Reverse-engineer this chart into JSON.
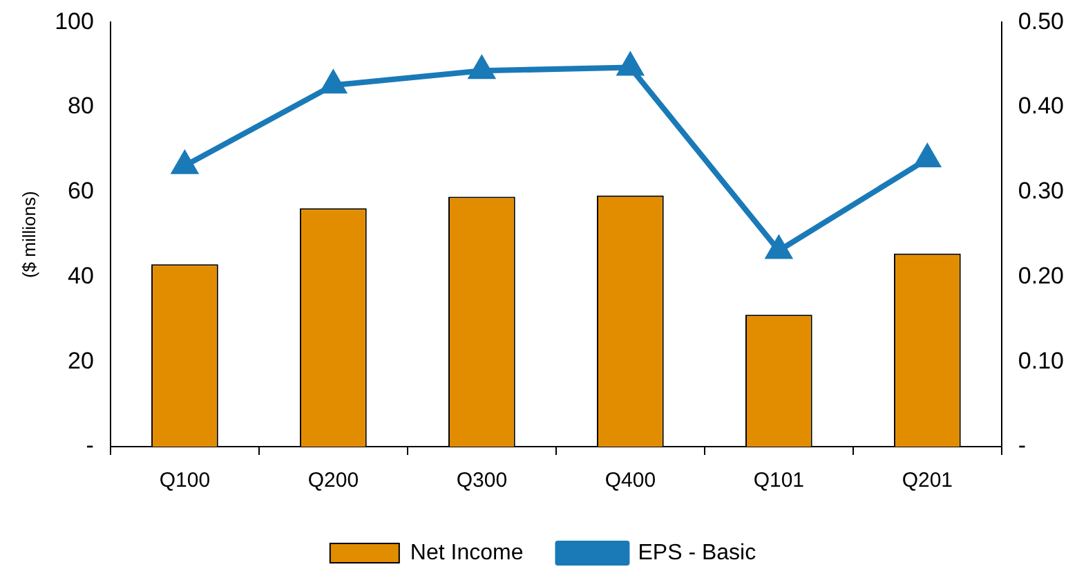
{
  "chart_data": {
    "type": "bar",
    "ylabel": "($ millions)",
    "categories": [
      "Q100",
      "Q200",
      "Q300",
      "Q400",
      "Q101",
      "Q201"
    ],
    "series": [
      {
        "name": "Net Income",
        "color": "#e28d00",
        "values": [
          43,
          56.2,
          58.9,
          59.2,
          31.1,
          45.5
        ]
      },
      {
        "name": "EPS - Basic",
        "type": "line",
        "axis": "y2",
        "color": "#1a7ab8",
        "values": [
          0.331,
          0.426,
          0.443,
          0.447,
          0.231,
          0.339
        ]
      }
    ],
    "ylim": [
      0,
      100
    ],
    "yticks": [
      {
        "value": 0,
        "label": "-"
      },
      20,
      40,
      60,
      80,
      100
    ],
    "y2lim": [
      0,
      0.5
    ],
    "y2ticks": [
      {
        "value": 0,
        "label": "-"
      },
      {
        "value": 0.1,
        "label": "0.10"
      },
      {
        "value": 0.2,
        "label": "0.20"
      },
      {
        "value": 0.3,
        "label": "0.30"
      },
      {
        "value": 0.4,
        "label": "0.40"
      },
      {
        "value": 0.5,
        "label": "0.50"
      }
    ],
    "grid": false,
    "legend": "bottom",
    "marker": "triangle",
    "line_style": "solid"
  }
}
